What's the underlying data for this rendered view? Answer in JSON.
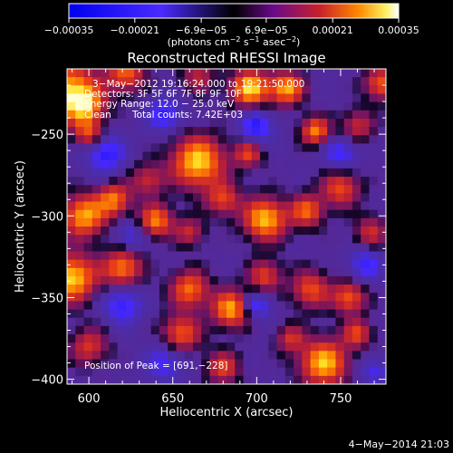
{
  "chart_data": {
    "type": "heatmap",
    "title": "Reconstructed RHESSI Image",
    "xlabel": "Heliocentric X (arcsec)",
    "ylabel": "Heliocentric Y (arcsec)",
    "xlim": [
      587,
      777
    ],
    "ylim": [
      -403,
      -210
    ],
    "x_ticks": [
      {
        "value": 600,
        "label": "600"
      },
      {
        "value": 650,
        "label": "650"
      },
      {
        "value": 700,
        "label": "700"
      },
      {
        "value": 750,
        "label": "750"
      }
    ],
    "y_ticks": [
      {
        "value": -250,
        "label": "−250"
      },
      {
        "value": -300,
        "label": "−300"
      },
      {
        "value": -350,
        "label": "−350"
      },
      {
        "value": -400,
        "label": "−400"
      }
    ],
    "colorbar": {
      "range": [
        -0.00035,
        0.00035
      ],
      "ticks": [
        {
          "value": -0.00035,
          "label": "−0.00035"
        },
        {
          "value": -0.00021,
          "label": "−0.00021"
        },
        {
          "value": -6.9e-05,
          "label": "−6.9e−05"
        },
        {
          "value": 6.9e-05,
          "label": "6.9e−05"
        },
        {
          "value": 0.00021,
          "label": "0.00021"
        },
        {
          "value": 0.00035,
          "label": "0.00035"
        }
      ],
      "unit_main": "(photons cm",
      "unit_sup1": "−2",
      "unit_mid": " s",
      "unit_sup2": "−1",
      "unit_end": " asec",
      "unit_sup3": "−2",
      "unit_close": ")"
    },
    "annotations": {
      "time": "3−May−2012 19:16:24.000 to 19:21:50.000",
      "detectors": "Detectors: 3F 5F 6F 7F 8F 9F 10F",
      "energy": "Energy Range: 12.0 − 25.0 keV",
      "clean_label": "Clean",
      "counts": "Total counts: 7.42E+03",
      "peak": "Position of Peak = [691,−228]"
    },
    "footer_timestamp": "4−May−2014 21:03",
    "grid": false,
    "legend": "none",
    "grid_cols": 38,
    "grid_rows": 38,
    "blobs": [
      [
        588,
        -223,
        0.9,
        12
      ],
      [
        598,
        -233,
        0.7,
        8
      ],
      [
        622,
        -213,
        0.7,
        8
      ],
      [
        665,
        -215,
        0.45,
        7
      ],
      [
        696,
        -222,
        1.0,
        8
      ],
      [
        718,
        -222,
        0.9,
        7
      ],
      [
        735,
        -248,
        0.8,
        6
      ],
      [
        760,
        -245,
        0.5,
        7
      ],
      [
        774,
        -219,
        0.7,
        7
      ],
      [
        665,
        -267,
        1.0,
        11
      ],
      [
        680,
        -290,
        0.6,
        7
      ],
      [
        695,
        -262,
        0.6,
        6
      ],
      [
        600,
        -250,
        0.6,
        6
      ],
      [
        635,
        -278,
        0.5,
        7
      ],
      [
        597,
        -300,
        0.9,
        9
      ],
      [
        615,
        -290,
        0.75,
        7
      ],
      [
        640,
        -303,
        0.8,
        7
      ],
      [
        660,
        -310,
        0.5,
        6
      ],
      [
        705,
        -302,
        0.95,
        9
      ],
      [
        730,
        -297,
        0.7,
        7
      ],
      [
        750,
        -283,
        0.65,
        8
      ],
      [
        768,
        -310,
        0.5,
        7
      ],
      [
        590,
        -338,
        1.0,
        10
      ],
      [
        620,
        -332,
        0.8,
        8
      ],
      [
        660,
        -345,
        0.75,
        8
      ],
      [
        685,
        -357,
        0.9,
        8
      ],
      [
        705,
        -337,
        0.6,
        7
      ],
      [
        732,
        -345,
        0.65,
        8
      ],
      [
        755,
        -350,
        0.7,
        7
      ],
      [
        600,
        -380,
        0.55,
        8
      ],
      [
        655,
        -372,
        0.7,
        8
      ],
      [
        680,
        -393,
        0.6,
        7
      ],
      [
        740,
        -390,
        0.95,
        10
      ],
      [
        760,
        -372,
        0.6,
        6
      ],
      [
        720,
        -375,
        0.5,
        6
      ]
    ],
    "negative_blobs": [
      [
        610,
        -262,
        0.6,
        8
      ],
      [
        645,
        -238,
        0.55,
        7
      ],
      [
        700,
        -245,
        0.6,
        7
      ],
      [
        750,
        -262,
        0.5,
        7
      ],
      [
        620,
        -355,
        0.55,
        8
      ],
      [
        700,
        -355,
        0.55,
        6
      ],
      [
        645,
        -390,
        0.45,
        8
      ],
      [
        765,
        -330,
        0.5,
        7
      ],
      [
        625,
        -312,
        0.4,
        6
      ],
      [
        770,
        -395,
        0.4,
        6
      ]
    ]
  }
}
